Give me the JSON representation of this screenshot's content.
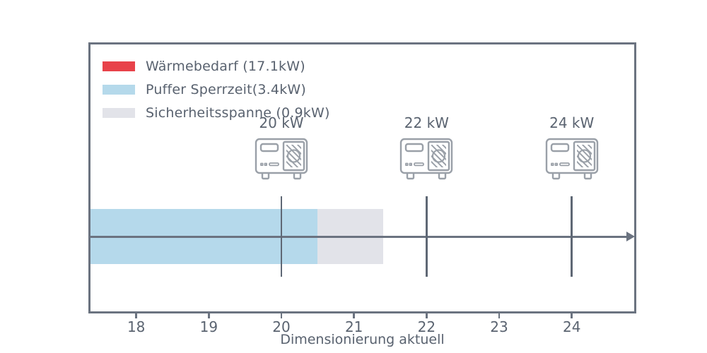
{
  "colors": {
    "border_and_axis": "#6b7380",
    "text": "#5a6370",
    "icon_stroke": "#9aa0a8",
    "waermebedarf_red": "#e8424a",
    "puffer_blue": "#b5d9eb",
    "sicherheit_gray": "#e2e3e9"
  },
  "legend": {
    "items": [
      {
        "key": "waermebedarf",
        "label": "Wärmebedarf (17.1kW)",
        "color": "#e8424a"
      },
      {
        "key": "puffer",
        "label": "Puffer Sperrzeit(3.4kW)",
        "color": "#b5d9eb"
      },
      {
        "key": "sicherheit",
        "label": "Sicherheitsspanne (0.9kW)",
        "color": "#e2e3e9"
      }
    ]
  },
  "chart_data": {
    "type": "bar",
    "subtype": "single-stacked-horizontal-bar",
    "title": "",
    "xlabel": "Dimensionierung aktuell",
    "ylabel": "",
    "unit": "kW",
    "grid": false,
    "legend_position": "upper-left",
    "x_ticks": [
      18,
      19,
      20,
      21,
      22,
      23,
      24
    ],
    "x_range_visible": [
      17.37,
      24.86
    ],
    "segments": [
      {
        "key": "waermebedarf",
        "name": "Wärmebedarf",
        "value": 17.1,
        "color": "#e8424a",
        "note": "clipped left of visible axis range"
      },
      {
        "key": "puffer",
        "name": "Puffer Sperrzeit",
        "value": 3.4,
        "color": "#b5d9eb"
      },
      {
        "key": "sicherheit",
        "name": "Sicherheitsspanne",
        "value": 0.9,
        "color": "#e2e3e9"
      }
    ],
    "stack_boundaries_kw": [
      17.1,
      20.5,
      21.4
    ],
    "markers": [
      {
        "label": "20 kW",
        "value": 20,
        "icon": "heat-pump-icon"
      },
      {
        "label": "22 kW",
        "value": 22,
        "icon": "heat-pump-icon"
      },
      {
        "label": "24 kW",
        "value": 24,
        "icon": "heat-pump-icon"
      }
    ]
  }
}
